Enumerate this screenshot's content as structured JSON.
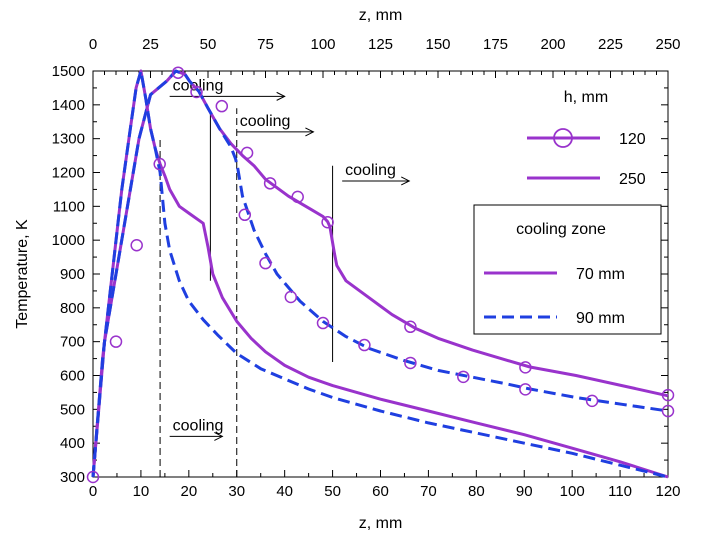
{
  "chart_data": {
    "type": "line",
    "xlabel_bottom": "z, mm",
    "xlabel_top": "z, mm",
    "ylabel": "Temperature, K",
    "x_range": [
      0,
      120
    ],
    "x_top_range": [
      0,
      250
    ],
    "y_range": [
      300,
      1500
    ],
    "x_ticks": [
      0,
      10,
      20,
      30,
      40,
      50,
      60,
      70,
      80,
      90,
      100,
      110,
      120
    ],
    "x_top_ticks": [
      0,
      25,
      50,
      75,
      100,
      125,
      150,
      175,
      200,
      225,
      250
    ],
    "y_ticks": [
      300,
      400,
      500,
      600,
      700,
      800,
      900,
      1000,
      1100,
      1200,
      1300,
      1400,
      1500
    ],
    "grid": false,
    "series": [
      {
        "axis": "top",
        "style": "solid",
        "color": "#9933CC",
        "points": [
          [
            0,
            300
          ],
          [
            5,
            700
          ],
          [
            10,
            900
          ],
          [
            15,
            1100
          ],
          [
            20,
            1300
          ],
          [
            25,
            1430
          ],
          [
            32,
            1470
          ],
          [
            36,
            1500
          ],
          [
            40,
            1490
          ],
          [
            42,
            1470
          ],
          [
            46,
            1440
          ],
          [
            50,
            1390
          ],
          [
            55,
            1330
          ],
          [
            60,
            1285
          ],
          [
            65,
            1250
          ],
          [
            70,
            1220
          ],
          [
            75,
            1180
          ],
          [
            85,
            1130
          ],
          [
            95,
            1090
          ],
          [
            100,
            1070
          ],
          [
            102,
            1055
          ],
          [
            103,
            1040
          ],
          [
            104,
            1000
          ],
          [
            105,
            960
          ],
          [
            106,
            925
          ],
          [
            110,
            880
          ],
          [
            120,
            830
          ],
          [
            130,
            780
          ],
          [
            140,
            740
          ],
          [
            150,
            710
          ],
          [
            165,
            675
          ],
          [
            180,
            645
          ],
          [
            190,
            625
          ],
          [
            210,
            600
          ],
          [
            230,
            570
          ],
          [
            250,
            540
          ]
        ]
      },
      {
        "axis": "top",
        "style": "dashed",
        "color": "#1F3FE0",
        "points": [
          [
            0,
            300
          ],
          [
            5,
            700
          ],
          [
            10,
            900
          ],
          [
            15,
            1100
          ],
          [
            20,
            1300
          ],
          [
            25,
            1430
          ],
          [
            32,
            1470
          ],
          [
            36,
            1500
          ],
          [
            40,
            1490
          ],
          [
            42,
            1470
          ],
          [
            46,
            1440
          ],
          [
            50,
            1390
          ],
          [
            55,
            1330
          ],
          [
            60,
            1275
          ],
          [
            62,
            1240
          ],
          [
            63,
            1210
          ],
          [
            65,
            1130
          ],
          [
            70,
            1030
          ],
          [
            75,
            960
          ],
          [
            80,
            900
          ],
          [
            90,
            820
          ],
          [
            100,
            760
          ],
          [
            110,
            715
          ],
          [
            120,
            680
          ],
          [
            135,
            645
          ],
          [
            150,
            615
          ],
          [
            165,
            595
          ],
          [
            180,
            575
          ],
          [
            190,
            560
          ],
          [
            210,
            535
          ],
          [
            230,
            515
          ],
          [
            250,
            495
          ]
        ]
      },
      {
        "axis": "bottom",
        "style": "solid",
        "color": "#9933CC",
        "points": [
          [
            0,
            300
          ],
          [
            2,
            650
          ],
          [
            4,
            900
          ],
          [
            6,
            1150
          ],
          [
            8,
            1350
          ],
          [
            9,
            1450
          ],
          [
            10,
            1500
          ],
          [
            11,
            1420
          ],
          [
            12,
            1330
          ],
          [
            13,
            1270
          ],
          [
            14,
            1225
          ],
          [
            15,
            1190
          ],
          [
            16,
            1150
          ],
          [
            18,
            1100
          ],
          [
            20,
            1080
          ],
          [
            23,
            1050
          ],
          [
            24,
            980
          ],
          [
            25,
            900
          ],
          [
            27,
            830
          ],
          [
            30,
            760
          ],
          [
            33,
            710
          ],
          [
            36,
            670
          ],
          [
            40,
            630
          ],
          [
            45,
            595
          ],
          [
            50,
            570
          ],
          [
            60,
            530
          ],
          [
            70,
            495
          ],
          [
            80,
            460
          ],
          [
            90,
            425
          ],
          [
            100,
            385
          ],
          [
            110,
            345
          ],
          [
            120,
            300
          ]
        ]
      },
      {
        "axis": "bottom",
        "style": "dashed",
        "color": "#1F3FE0",
        "points": [
          [
            0,
            300
          ],
          [
            2,
            650
          ],
          [
            4,
            900
          ],
          [
            6,
            1150
          ],
          [
            8,
            1350
          ],
          [
            9,
            1450
          ],
          [
            10,
            1500
          ],
          [
            11,
            1420
          ],
          [
            12,
            1330
          ],
          [
            13,
            1270
          ],
          [
            14,
            1200
          ],
          [
            15,
            1050
          ],
          [
            16,
            970
          ],
          [
            18,
            880
          ],
          [
            20,
            820
          ],
          [
            23,
            765
          ],
          [
            26,
            720
          ],
          [
            30,
            665
          ],
          [
            35,
            620
          ],
          [
            40,
            590
          ],
          [
            45,
            560
          ],
          [
            50,
            535
          ],
          [
            60,
            495
          ],
          [
            70,
            460
          ],
          [
            80,
            430
          ],
          [
            90,
            400
          ],
          [
            100,
            370
          ],
          [
            110,
            335
          ],
          [
            120,
            300
          ]
        ]
      }
    ],
    "markers": [
      {
        "axis": "top",
        "x": 0,
        "y": 300
      },
      {
        "axis": "top",
        "x": 10,
        "y": 700
      },
      {
        "axis": "top",
        "x": 19,
        "y": 985
      },
      {
        "axis": "top",
        "x": 29,
        "y": 1225
      },
      {
        "axis": "top",
        "x": 37,
        "y": 1495
      },
      {
        "axis": "top",
        "x": 45,
        "y": 1438
      },
      {
        "axis": "top",
        "x": 56,
        "y": 1396
      },
      {
        "axis": "top",
        "x": 67,
        "y": 1258
      },
      {
        "axis": "top",
        "x": 77,
        "y": 1168
      },
      {
        "axis": "top",
        "x": 89,
        "y": 1128
      },
      {
        "axis": "top",
        "x": 102,
        "y": 1053
      },
      {
        "axis": "top",
        "x": 138,
        "y": 744
      },
      {
        "axis": "top",
        "x": 188,
        "y": 624
      },
      {
        "axis": "top",
        "x": 250,
        "y": 542
      },
      {
        "axis": "top",
        "x": 66,
        "y": 1075
      },
      {
        "axis": "top",
        "x": 75,
        "y": 932
      },
      {
        "axis": "top",
        "x": 86,
        "y": 832
      },
      {
        "axis": "top",
        "x": 100,
        "y": 755
      },
      {
        "axis": "top",
        "x": 118,
        "y": 690
      },
      {
        "axis": "top",
        "x": 138,
        "y": 637
      },
      {
        "axis": "top",
        "x": 161,
        "y": 596
      },
      {
        "axis": "top",
        "x": 188,
        "y": 559
      },
      {
        "axis": "top",
        "x": 217,
        "y": 525
      },
      {
        "axis": "top",
        "x": 250,
        "y": 495
      }
    ],
    "annotations": {
      "cooling_lines": [
        {
          "axis": "bottom",
          "x": 14,
          "style": "dashed",
          "y_from": 300,
          "y_to": 1300
        },
        {
          "axis": "bottom",
          "x": 30,
          "style": "dashed",
          "y_from": 300,
          "y_to": 1390
        },
        {
          "axis": "bottom",
          "x": 24.5,
          "style": "solid",
          "y_from": 880,
          "y_to": 1380
        },
        {
          "axis": "bottom",
          "x": 50,
          "style": "solid",
          "y_from": 640,
          "y_to": 1220
        }
      ],
      "cooling_labels": [
        {
          "text": "cooling",
          "axis": "bottom",
          "x": 16,
          "y": 1425,
          "arrow_to": 40
        },
        {
          "text": "cooling",
          "axis": "bottom",
          "x": 30,
          "y": 1320,
          "arrow_to": 46
        },
        {
          "text": "cooling",
          "axis": "bottom",
          "x": 52,
          "y": 1175,
          "arrow_to": 66
        },
        {
          "text": "cooling",
          "axis": "bottom",
          "x": 16,
          "y": 420,
          "arrow_to": 27
        }
      ]
    },
    "legend_h": {
      "title": "h, mm",
      "entries": [
        {
          "label": "120",
          "marker": "circle",
          "style": "solid"
        },
        {
          "label": "250",
          "marker": "none",
          "style": "solid"
        }
      ]
    },
    "legend_zone": {
      "title": "cooling zone",
      "entries": [
        {
          "label": "70 mm",
          "style": "solid",
          "color": "#9933CC"
        },
        {
          "label": "90 mm",
          "style": "dashed",
          "color": "#1F3FE0"
        }
      ]
    }
  }
}
